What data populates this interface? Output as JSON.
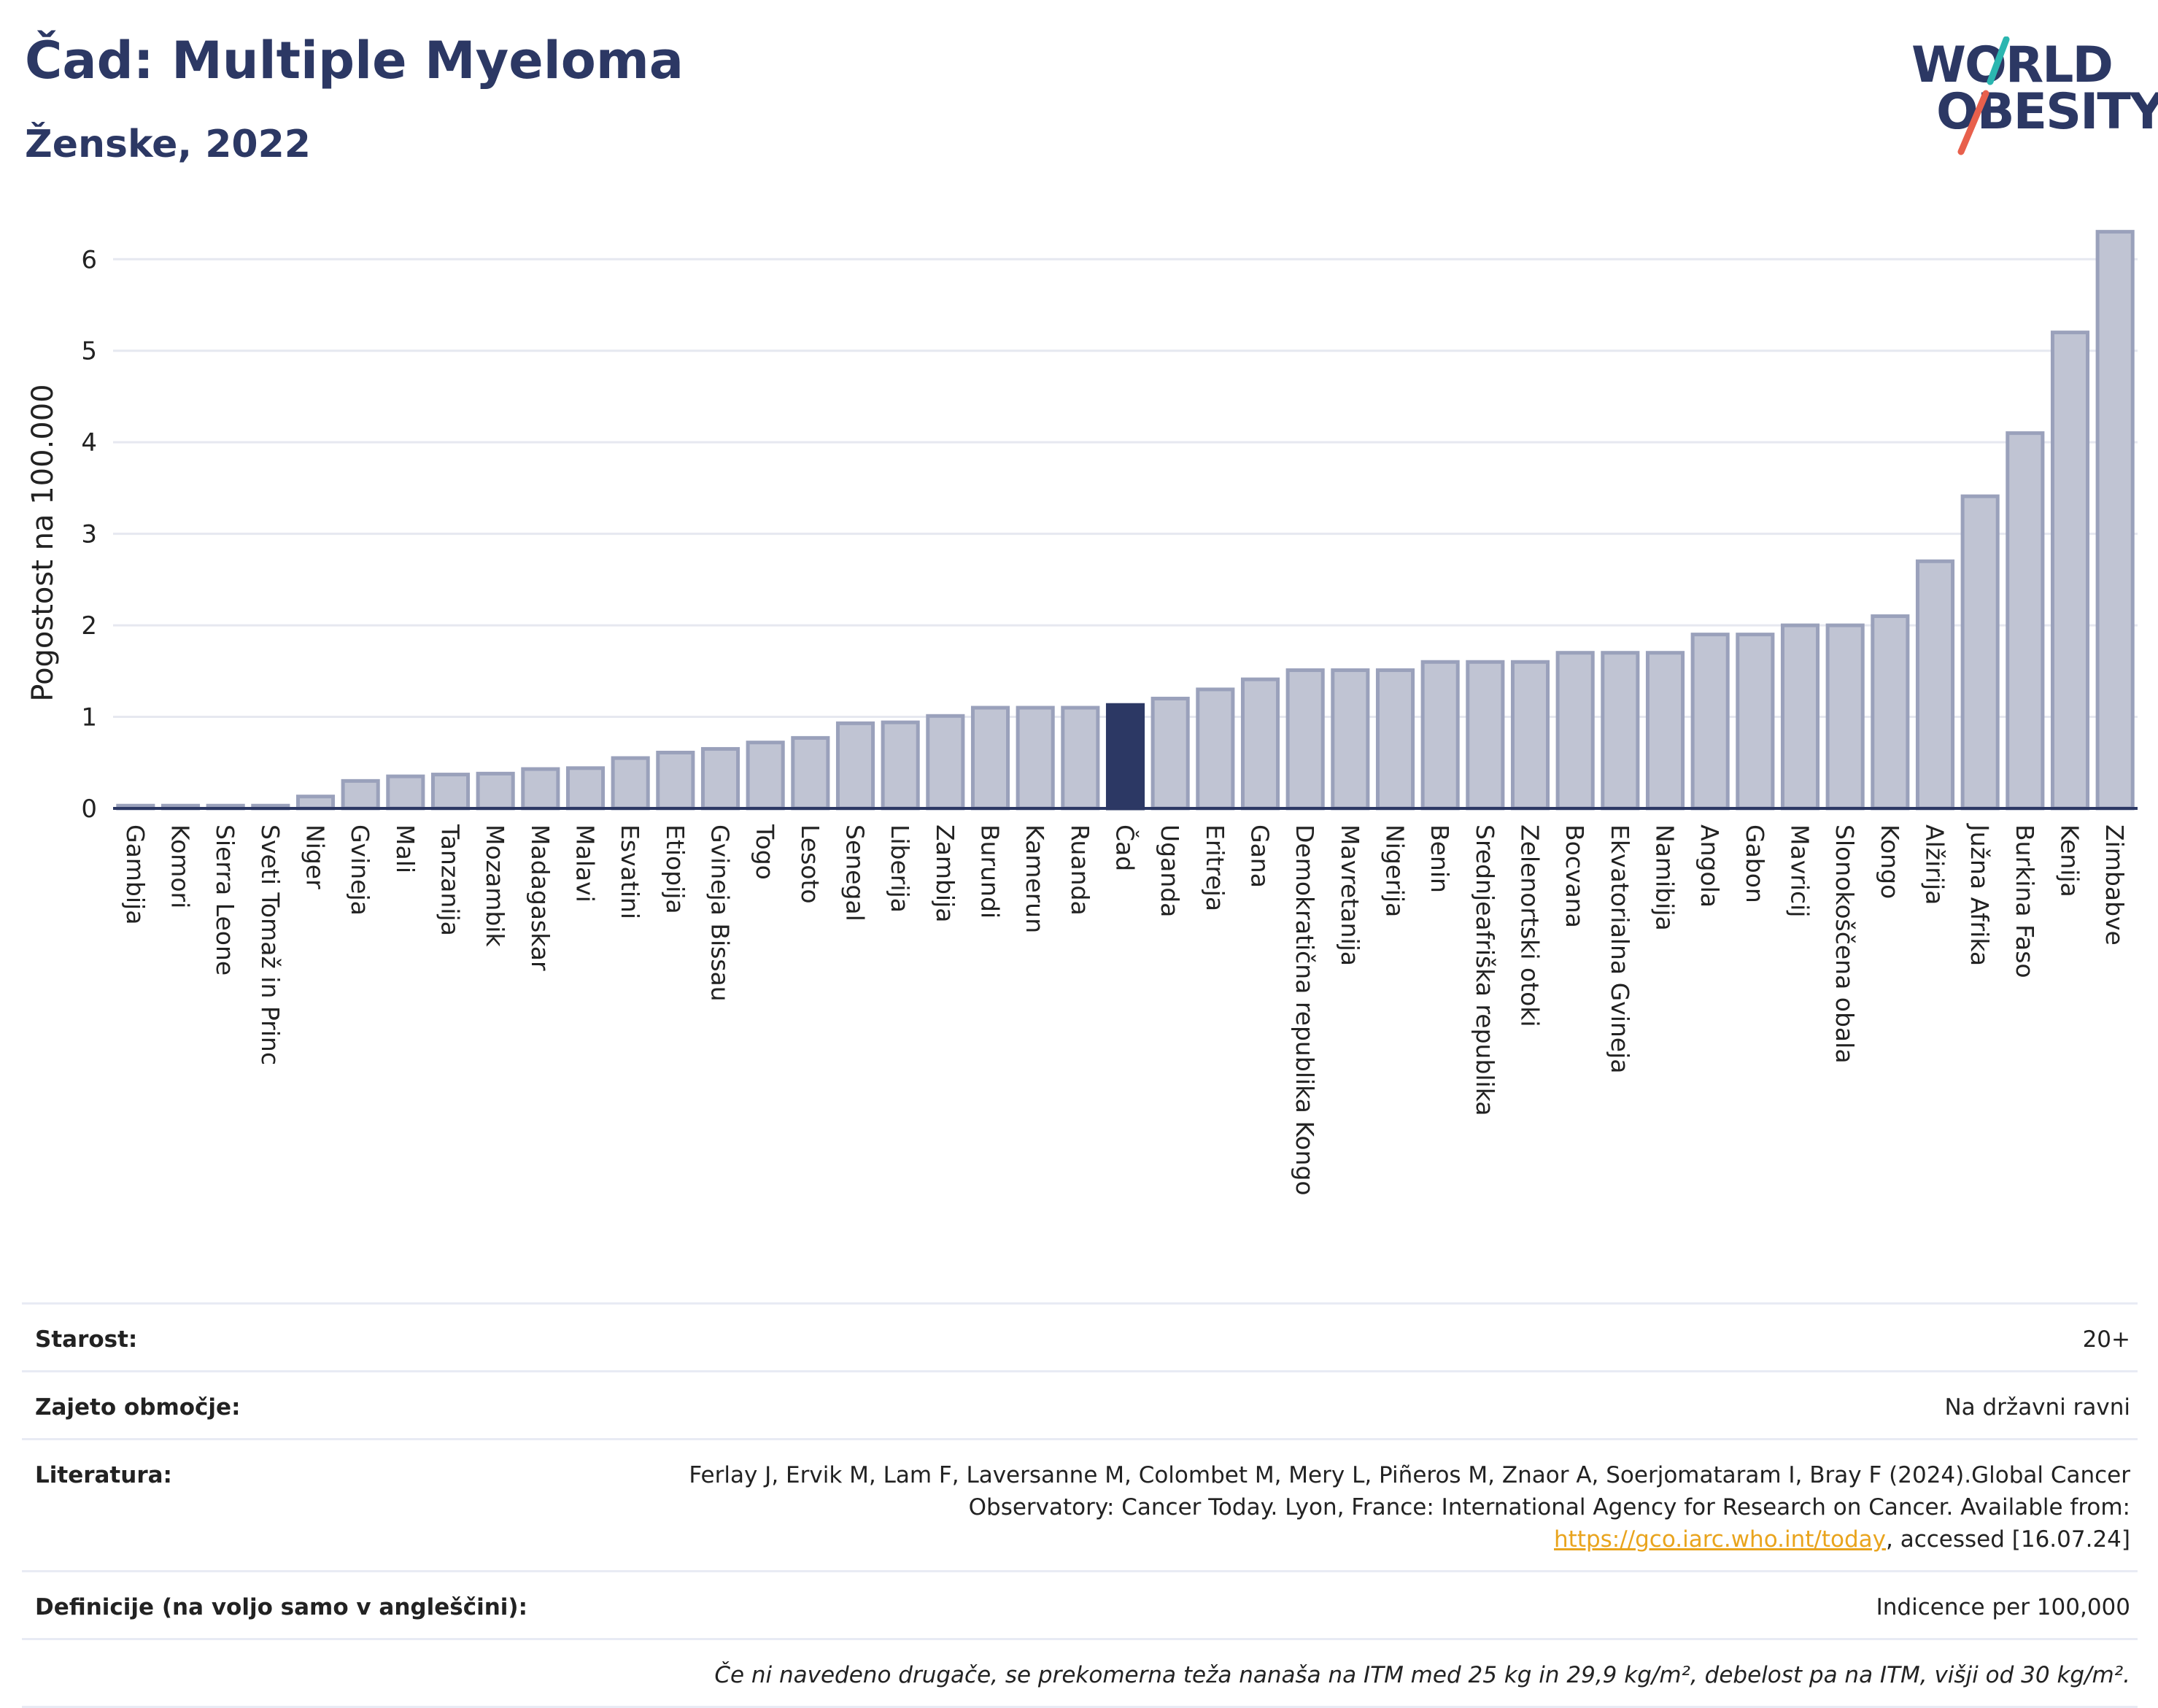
{
  "header": {
    "title": "Čad: Multiple Myeloma",
    "subtitle": "Ženske, 2022"
  },
  "logo": {
    "line1": "WORLD",
    "line2": "OBESITY",
    "colors": {
      "text": "#2c3864",
      "slash_top": "#2bb6b0",
      "slash_bottom": "#e8604c"
    }
  },
  "chart_data": {
    "type": "bar",
    "ylabel": "Pogostost na 100.000",
    "xlabel": "",
    "ylim": [
      0,
      6.6
    ],
    "yticks": [
      0,
      1,
      2,
      3,
      4,
      5,
      6
    ],
    "grid": true,
    "highlight": "Čad",
    "colors": {
      "bar": "#c0c4d3",
      "bar_edge": "#9aa1bb",
      "highlight": "#2c3864",
      "grid": "#e6e8f0"
    },
    "categories": [
      "Gambija",
      "Komori",
      "Sierra Leone",
      "Sveti Tomaž in Princ",
      "Niger",
      "Gvineja",
      "Mali",
      "Tanzanija",
      "Mozambik",
      "Madagaskar",
      "Malavi",
      "Esvatini",
      "Etiopija",
      "Gvineja Bissau",
      "Togo",
      "Lesoto",
      "Senegal",
      "Liberija",
      "Zambija",
      "Burundi",
      "Kamerun",
      "Ruanda",
      "Čad",
      "Uganda",
      "Eritreja",
      "Gana",
      "Demokratična republika Kongo",
      "Mavretanija",
      "Nigerija",
      "Benin",
      "Srednjeafriška republika",
      "Zelenortski otoki",
      "Bocvana",
      "Ekvatorialna Gvineja",
      "Namibija",
      "Angola",
      "Gabon",
      "Mavricij",
      "Slonokoščena obala",
      "Kongo",
      "Alžirija",
      "Južna Afrika",
      "Burkina Faso",
      "Kenija",
      "Zimbabve"
    ],
    "values": [
      0.03,
      0.03,
      0.03,
      0.03,
      0.13,
      0.3,
      0.35,
      0.37,
      0.38,
      0.43,
      0.44,
      0.55,
      0.61,
      0.65,
      0.72,
      0.77,
      0.93,
      0.94,
      1.01,
      1.1,
      1.1,
      1.1,
      1.13,
      1.2,
      1.3,
      1.41,
      1.51,
      1.51,
      1.51,
      1.6,
      1.6,
      1.6,
      1.7,
      1.7,
      1.7,
      1.9,
      1.9,
      2.0,
      2.0,
      2.1,
      2.7,
      3.41,
      4.1,
      5.2,
      6.3
    ]
  },
  "info": {
    "rows": [
      {
        "label": "Starost:",
        "value": "20+"
      },
      {
        "label": "Zajeto območje:",
        "value": "Na državni ravni"
      },
      {
        "label": "Literatura:",
        "value_before_link": "Ferlay J, Ervik M, Lam F, Laversanne M, Colombet M, Mery L, Piñeros M, Znaor A, Soerjomataram I, Bray F (2024).Global Cancer Observatory: Cancer Today. Lyon, France: International Agency for Research on Cancer. Available from: ",
        "link": "https://gco.iarc.who.int/today",
        "value_after_link": ", accessed [16.07.24]"
      },
      {
        "label": "Definicije (na voljo samo v angleščini):",
        "value": "Indicence per 100,000"
      }
    ],
    "note": "Če ni navedeno drugače, se prekomerna teža nanaša na ITM med 25 kg in 29,9 kg/m², debelost pa na ITM, višji od 30 kg/m²."
  }
}
